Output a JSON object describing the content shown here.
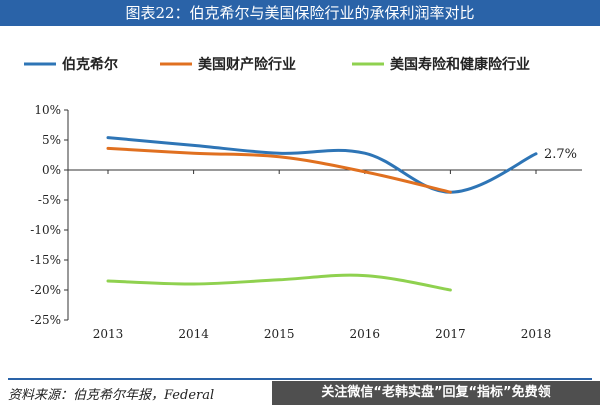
{
  "title": "图表22：伯克希尔与美国保险行业的承保利润率对比",
  "source_text": "资料来源：伯克希尔年报，Federal",
  "banner_text": "关注微信“老韩实盘”回复“指标”免费领",
  "chart_data": {
    "type": "line",
    "title": "图表22：伯克希尔与美国保险行业的承保利润率对比",
    "xlabel": "",
    "ylabel": "",
    "categories": [
      "2013",
      "2014",
      "2015",
      "2016",
      "2017",
      "2018"
    ],
    "ylim": [
      -25,
      10
    ],
    "yticks": [
      "10%",
      "5%",
      "0%",
      "-5%",
      "-10%",
      "-15%",
      "-20%",
      "-25%"
    ],
    "grid": false,
    "legend_position": "top",
    "series": [
      {
        "name": "伯克希尔",
        "color": "#2e75b6",
        "values": [
          5.4,
          4.1,
          2.8,
          2.8,
          -3.7,
          2.7
        ]
      },
      {
        "name": "美国财产险行业",
        "color": "#e07020",
        "values": [
          3.6,
          2.8,
          2.2,
          -0.3,
          -3.7,
          null
        ]
      },
      {
        "name": "美国寿险和健康险行业",
        "color": "#8fd14f",
        "values": [
          -18.5,
          -19.0,
          -18.3,
          -17.6,
          -20.0,
          null
        ]
      }
    ],
    "annotations": [
      {
        "text": "2.7%",
        "series": 0,
        "index": 5
      }
    ]
  }
}
